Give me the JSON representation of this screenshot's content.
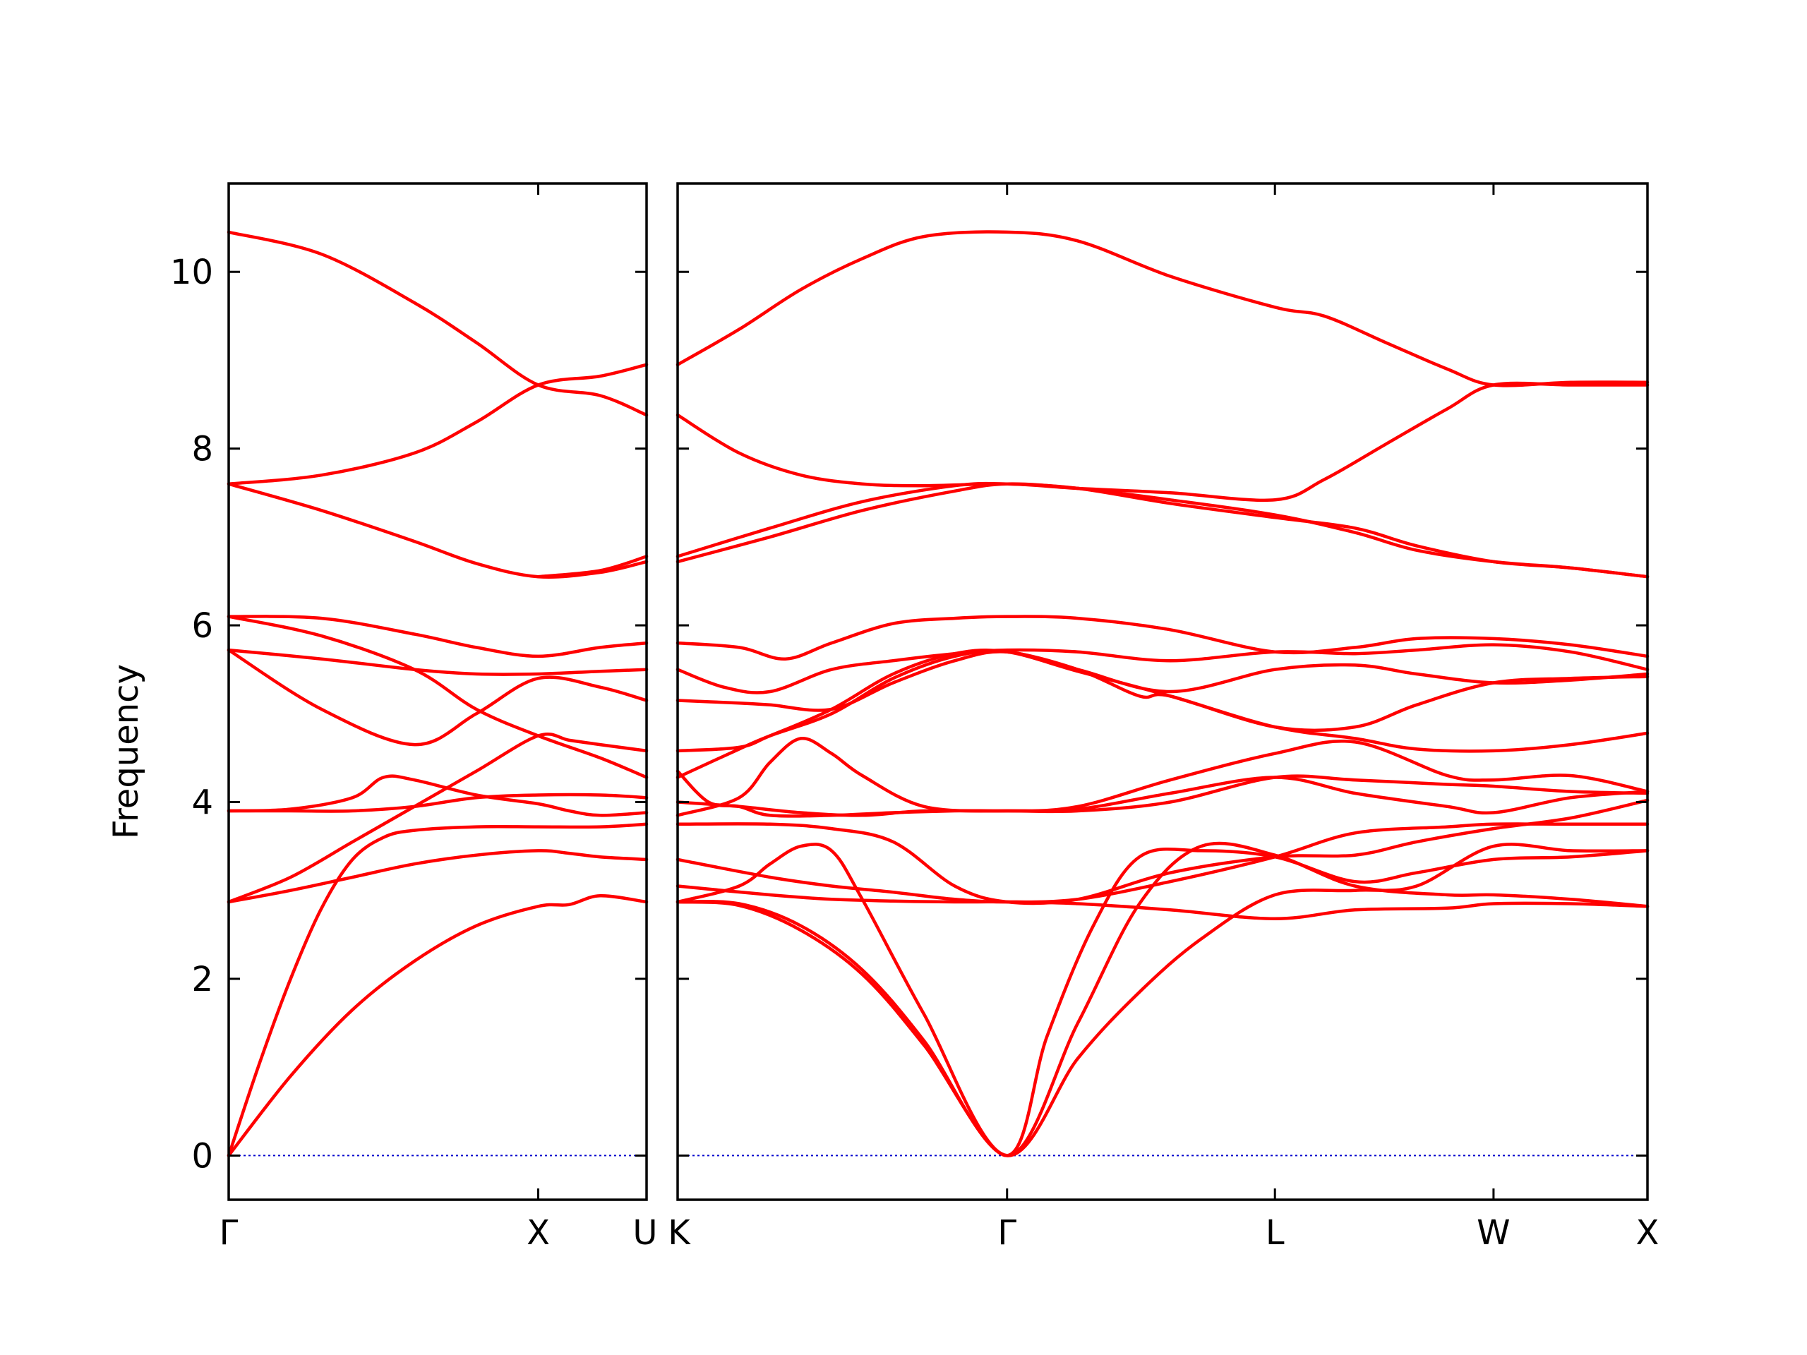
{
  "chart_data": {
    "type": "line",
    "ylabel": "Frequency",
    "ylim": [
      -0.5,
      11
    ],
    "yticks": [
      0,
      2,
      4,
      6,
      8,
      10
    ],
    "zero_line": true,
    "grid": false,
    "legend": "none",
    "colors": {
      "band": "#ff0000",
      "zero_line": "#0000cc",
      "axis": "#000000"
    },
    "panels": [
      {
        "name": "left",
        "xrange": [
          0,
          1.35
        ],
        "ticks": [
          {
            "x": 0,
            "label": "Γ"
          },
          {
            "x": 1.0,
            "label": "X"
          },
          {
            "x": 1.35,
            "label": "U"
          }
        ],
        "series": [
          {
            "x": [
              0,
              0.2,
              0.4,
              0.6,
              0.8,
              1.0,
              1.1,
              1.2,
              1.35
            ],
            "y": [
              0,
              0.9,
              1.65,
              2.2,
              2.6,
              2.82,
              2.84,
              2.94,
              2.87
            ]
          },
          {
            "x": [
              0,
              0.1,
              0.2,
              0.3,
              0.4,
              0.5,
              0.6,
              0.8,
              1.0,
              1.2,
              1.35
            ],
            "y": [
              0,
              1.05,
              2.0,
              2.8,
              3.35,
              3.6,
              3.68,
              3.72,
              3.72,
              3.72,
              3.75
            ]
          },
          {
            "x": [
              0,
              0.2,
              0.4,
              0.6,
              0.8,
              1.0,
              1.1,
              1.2,
              1.35
            ],
            "y": [
              2.87,
              3.0,
              3.15,
              3.3,
              3.4,
              3.45,
              3.42,
              3.38,
              3.35
            ]
          },
          {
            "x": [
              0,
              0.2,
              0.4,
              0.6,
              0.8,
              1.0,
              1.1,
              1.2,
              1.35
            ],
            "y": [
              2.87,
              3.15,
              3.55,
              3.95,
              4.35,
              4.75,
              4.7,
              4.65,
              4.58
            ]
          },
          {
            "x": [
              0,
              0.2,
              0.4,
              0.5,
              0.6,
              0.8,
              1.0,
              1.1,
              1.2,
              1.35
            ],
            "y": [
              3.9,
              3.92,
              4.05,
              4.28,
              4.25,
              4.08,
              3.98,
              3.9,
              3.85,
              3.88
            ]
          },
          {
            "x": [
              0,
              0.2,
              0.4,
              0.6,
              0.8,
              1.0,
              1.2,
              1.35
            ],
            "y": [
              3.9,
              3.9,
              3.9,
              3.95,
              4.05,
              4.08,
              4.08,
              4.05
            ]
          },
          {
            "x": [
              0,
              0.3,
              0.6,
              0.8,
              1.0,
              1.2,
              1.35
            ],
            "y": [
              5.72,
              5.05,
              4.65,
              5.0,
              5.4,
              5.3,
              5.15
            ]
          },
          {
            "x": [
              0,
              0.3,
              0.6,
              0.8,
              1.0,
              1.2,
              1.35
            ],
            "y": [
              5.72,
              5.62,
              5.5,
              5.45,
              5.45,
              5.48,
              5.5
            ]
          },
          {
            "x": [
              0,
              0.3,
              0.6,
              0.8,
              1.0,
              1.2,
              1.35
            ],
            "y": [
              6.1,
              5.88,
              5.5,
              5.05,
              4.75,
              4.5,
              4.28
            ]
          },
          {
            "x": [
              0,
              0.3,
              0.6,
              0.8,
              1.0,
              1.2,
              1.35
            ],
            "y": [
              6.1,
              6.08,
              5.9,
              5.75,
              5.65,
              5.75,
              5.8
            ]
          },
          {
            "x": [
              0,
              0.3,
              0.6,
              0.8,
              1.0,
              1.2,
              1.35
            ],
            "y": [
              7.6,
              7.3,
              6.95,
              6.7,
              6.55,
              6.6,
              6.72
            ]
          },
          {
            "x": [
              0,
              0.3,
              0.6,
              0.8,
              1.0,
              1.2,
              1.35
            ],
            "y": [
              7.6,
              7.7,
              7.95,
              8.3,
              8.72,
              8.82,
              8.95
            ]
          },
          {
            "x": [
              0,
              0.3,
              0.6,
              0.8,
              1.0,
              1.2,
              1.35
            ],
            "y": [
              10.45,
              10.2,
              9.65,
              9.2,
              8.72,
              8.6,
              8.38
            ]
          },
          {
            "x": [
              1.0,
              1.2,
              1.35
            ],
            "y": [
              6.55,
              6.62,
              6.78
            ]
          }
        ]
      },
      {
        "name": "right",
        "xrange": [
          0,
          3.15
        ],
        "ticks": [
          {
            "x": 0,
            "label": "K"
          },
          {
            "x": 1.07,
            "label": "Γ"
          },
          {
            "x": 1.94,
            "label": "L"
          },
          {
            "x": 2.65,
            "label": "W"
          },
          {
            "x": 3.15,
            "label": "X"
          }
        ],
        "series": [
          {
            "x": [
              0,
              0.2,
              0.4,
              0.6,
              0.8,
              1.07,
              1.3,
              1.5,
              1.7,
              1.94,
              2.2,
              2.4,
              2.65,
              2.9,
              3.15
            ],
            "y": [
              2.87,
              2.85,
              2.6,
              2.1,
              1.3,
              0,
              1.1,
              1.85,
              2.45,
              2.95,
              3.0,
              3.05,
              3.5,
              3.45,
              3.45
            ]
          },
          {
            "x": [
              0,
              0.2,
              0.4,
              0.6,
              0.8,
              1.07,
              1.2,
              1.35,
              1.5,
              1.7,
              1.94,
              2.2,
              2.4,
              2.65,
              2.9,
              3.15
            ],
            "y": [
              2.87,
              2.83,
              2.55,
              2.05,
              1.25,
              0,
              1.35,
              2.6,
              3.38,
              3.45,
              3.38,
              3.1,
              3.2,
              3.35,
              3.38,
              3.45
            ]
          },
          {
            "x": [
              0,
              0.3,
              0.5,
              0.7,
              0.9,
              1.07,
              1.3,
              1.6,
              1.94,
              2.2,
              2.5,
              2.65,
              2.9,
              3.15
            ],
            "y": [
              3.05,
              2.95,
              2.9,
              2.88,
              2.87,
              2.87,
              2.85,
              2.78,
              2.68,
              2.78,
              2.8,
              2.85,
              2.85,
              2.82
            ]
          },
          {
            "x": [
              0,
              0.2,
              0.3,
              0.4,
              0.5,
              0.6,
              0.8,
              1.07,
              1.3,
              1.5,
              1.7,
              1.94,
              2.2,
              2.5,
              2.65,
              2.9,
              3.15
            ],
            "y": [
              2.87,
              3.05,
              3.3,
              3.5,
              3.45,
              2.9,
              1.6,
              0,
              1.5,
              2.85,
              3.5,
              3.4,
              3.05,
              2.95,
              2.95,
              2.9,
              2.82
            ]
          },
          {
            "x": [
              0,
              0.3,
              0.5,
              0.7,
              0.9,
              1.07,
              1.3,
              1.6,
              1.94,
              2.2,
              2.5,
              2.65,
              2.9,
              3.15
            ],
            "y": [
              3.35,
              3.15,
              3.05,
              2.98,
              2.9,
              2.87,
              2.9,
              3.1,
              3.38,
              3.65,
              3.72,
              3.75,
              3.75,
              3.75
            ]
          },
          {
            "x": [
              0,
              0.3,
              0.5,
              0.7,
              0.9,
              1.07,
              1.3,
              1.6,
              1.94,
              2.2,
              2.4,
              2.65,
              2.9,
              3.15
            ],
            "y": [
              3.75,
              3.75,
              3.7,
              3.55,
              3.05,
              2.87,
              2.9,
              3.2,
              3.38,
              3.4,
              3.55,
              3.7,
              3.82,
              4.02
            ]
          },
          {
            "x": [
              0,
              0.2,
              0.4,
              0.6,
              0.8,
              1.07,
              1.3,
              1.6,
              1.94,
              2.2,
              2.5,
              2.65,
              2.9,
              3.15
            ],
            "y": [
              4.0,
              3.95,
              3.88,
              3.85,
              3.9,
              3.9,
              3.9,
              4.0,
              4.28,
              4.25,
              4.2,
              4.18,
              4.12,
              4.1
            ]
          },
          {
            "x": [
              0,
              0.1,
              0.2,
              0.3,
              0.5,
              0.7,
              0.9,
              1.07,
              1.3,
              1.6,
              1.94,
              2.2,
              2.5,
              2.65,
              2.9,
              3.15
            ],
            "y": [
              4.35,
              4.0,
              3.95,
              3.85,
              3.85,
              3.88,
              3.9,
              3.9,
              3.92,
              4.1,
              4.28,
              4.1,
              3.95,
              3.88,
              4.05,
              4.12
            ]
          },
          {
            "x": [
              0,
              0.2,
              0.3,
              0.4,
              0.5,
              0.6,
              0.8,
              1.07,
              1.3,
              1.6,
              1.94,
              2.2,
              2.5,
              2.65,
              2.9,
              3.15
            ],
            "y": [
              3.85,
              4.05,
              4.45,
              4.72,
              4.55,
              4.3,
              3.95,
              3.9,
              3.95,
              4.25,
              4.55,
              4.68,
              4.3,
              4.25,
              4.3,
              4.12
            ]
          },
          {
            "x": [
              0,
              0.2,
              0.3,
              0.5,
              0.7,
              0.9,
              1.07,
              1.3,
              1.6,
              1.94,
              2.2,
              2.4,
              2.65,
              2.9,
              3.15
            ],
            "y": [
              4.58,
              4.62,
              4.75,
              5.05,
              5.45,
              5.68,
              5.7,
              5.48,
              5.2,
              4.85,
              4.72,
              4.6,
              4.58,
              4.65,
              4.78
            ]
          },
          {
            "x": [
              0,
              0.2,
              0.3,
              0.5,
              0.7,
              0.9,
              1.07,
              1.3,
              1.5,
              1.6,
              1.94,
              2.2,
              2.4,
              2.65,
              2.9,
              3.15
            ],
            "y": [
              4.28,
              4.6,
              4.75,
              5.0,
              5.4,
              5.65,
              5.7,
              5.5,
              5.2,
              5.2,
              4.85,
              4.85,
              5.1,
              5.35,
              5.4,
              5.42
            ]
          },
          {
            "x": [
              0,
              0.2,
              0.3,
              0.5,
              0.7,
              0.9,
              1.07,
              1.3,
              1.6,
              1.94,
              2.2,
              2.4,
              2.65,
              2.9,
              3.15
            ],
            "y": [
              5.15,
              5.12,
              5.1,
              5.05,
              5.35,
              5.6,
              5.7,
              5.5,
              5.25,
              5.5,
              5.55,
              5.45,
              5.35,
              5.38,
              5.45
            ]
          },
          {
            "x": [
              0,
              0.15,
              0.3,
              0.5,
              0.7,
              0.9,
              1.07,
              1.3,
              1.6,
              1.94,
              2.2,
              2.4,
              2.65,
              2.9,
              3.15
            ],
            "y": [
              5.5,
              5.3,
              5.25,
              5.5,
              5.6,
              5.68,
              5.72,
              5.7,
              5.6,
              5.7,
              5.68,
              5.72,
              5.78,
              5.7,
              5.5
            ]
          },
          {
            "x": [
              0,
              0.2,
              0.35,
              0.5,
              0.7,
              0.9,
              1.07,
              1.3,
              1.6,
              1.94,
              2.2,
              2.4,
              2.65,
              2.9,
              3.15
            ],
            "y": [
              5.8,
              5.75,
              5.62,
              5.8,
              6.02,
              6.08,
              6.1,
              6.08,
              5.95,
              5.7,
              5.75,
              5.85,
              5.85,
              5.78,
              5.65
            ]
          },
          {
            "x": [
              0,
              0.3,
              0.6,
              0.9,
              1.07,
              1.3,
              1.6,
              1.94,
              2.2,
              2.4,
              2.65,
              2.9,
              3.15
            ],
            "y": [
              6.72,
              7.0,
              7.3,
              7.52,
              7.6,
              7.55,
              7.42,
              7.25,
              7.05,
              6.85,
              6.72,
              6.65,
              6.55
            ]
          },
          {
            "x": [
              0,
              0.3,
              0.6,
              0.9,
              1.07,
              1.3,
              1.6,
              1.94,
              2.2,
              2.4,
              2.65,
              2.9,
              3.15
            ],
            "y": [
              6.78,
              7.1,
              7.4,
              7.58,
              7.6,
              7.55,
              7.38,
              7.22,
              7.1,
              6.9,
              6.72,
              6.65,
              6.55
            ]
          },
          {
            "x": [
              0,
              0.2,
              0.4,
              0.6,
              0.8,
              1.07,
              1.3,
              1.6,
              1.94,
              2.1,
              2.3,
              2.5,
              2.65,
              2.9,
              3.15
            ],
            "y": [
              8.38,
              7.95,
              7.7,
              7.6,
              7.58,
              7.6,
              7.55,
              7.5,
              7.42,
              7.65,
              8.05,
              8.45,
              8.72,
              8.72,
              8.72
            ]
          },
          {
            "x": [
              0,
              0.2,
              0.4,
              0.6,
              0.8,
              1.07,
              1.3,
              1.6,
              1.94,
              2.1,
              2.3,
              2.5,
              2.65,
              2.9,
              3.15
            ],
            "y": [
              8.95,
              9.35,
              9.8,
              10.15,
              10.4,
              10.45,
              10.35,
              9.95,
              9.6,
              9.5,
              9.2,
              8.9,
              8.72,
              8.75,
              8.75
            ]
          }
        ]
      }
    ]
  }
}
